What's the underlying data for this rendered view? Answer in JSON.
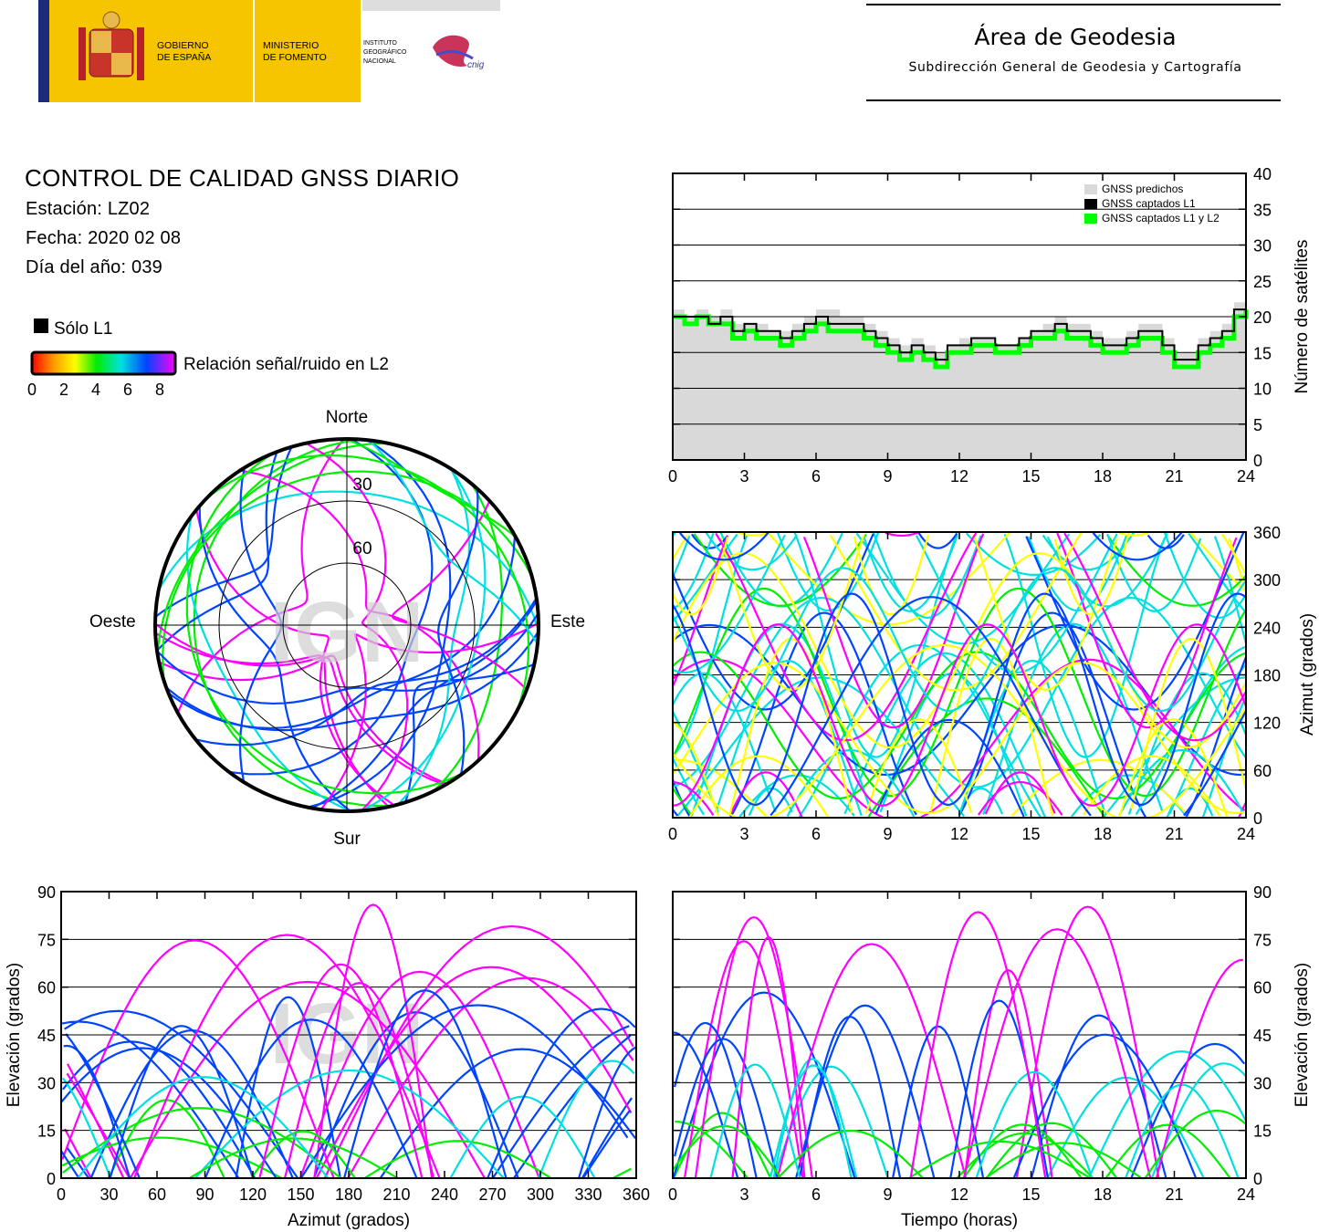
{
  "header": {
    "gov_line1": "GOBIERNO",
    "gov_line2": "DE ESPAÑA",
    "min_line1": "MINISTERIO",
    "min_line2": "DE FOMENTO",
    "inst_line1": "INSTITUTO",
    "inst_line2": "GEOGRÁFICO",
    "inst_line3": "NACIONAL",
    "cnig": "cnig",
    "area_title": "Área de Geodesia",
    "area_subtitle": "Subdirección General de Geodesia y Cartografía"
  },
  "report": {
    "title": "CONTROL DE CALIDAD GNSS DIARIO",
    "station": "Estación: LZ02",
    "date": "Fecha: 2020 02 08",
    "doy": "Día del año: 039"
  },
  "legend": {
    "solo_l1": "Sólo L1",
    "snr_label": "Relación señal/ruido en L2",
    "snr_ticks": [
      "0",
      "2",
      "4",
      "6",
      "8"
    ]
  },
  "colors": {
    "predicted": "#d9d9d9",
    "l1": "#000000",
    "l1l2": "#00ff00",
    "snr_scale": [
      "#ff0000",
      "#ff9900",
      "#ffff00",
      "#00ee00",
      "#00e0e0",
      "#0044ff",
      "#ff00ff"
    ]
  },
  "watermark": "IGN",
  "chart_data": [
    {
      "id": "skyplot",
      "type": "scatter",
      "projection": "polar",
      "labels": {
        "north": "Norte",
        "south": "Sur",
        "east": "Este",
        "west": "Oeste"
      },
      "ring_labels": [
        "30",
        "60"
      ],
      "rings_elevation": [
        30,
        60
      ]
    },
    {
      "id": "satellites",
      "type": "area",
      "ylabel": "Número de satélites",
      "xlim": [
        0,
        24
      ],
      "ylim": [
        0,
        40
      ],
      "xticks": [
        "0",
        "3",
        "6",
        "9",
        "12",
        "15",
        "18",
        "21",
        "24"
      ],
      "yticks": [
        "0",
        "5",
        "10",
        "15",
        "20",
        "25",
        "30",
        "35",
        "40"
      ],
      "legend": [
        "GNSS predichos",
        "GNSS captados L1",
        "GNSS captados L1 y L2"
      ],
      "x": [
        0,
        0.5,
        1,
        1.5,
        2,
        2.5,
        3,
        3.5,
        4,
        4.5,
        5,
        5.5,
        6,
        6.5,
        7,
        7.5,
        8,
        8.5,
        9,
        9.5,
        10,
        10.5,
        11,
        11.5,
        12,
        12.5,
        13,
        13.5,
        14,
        14.5,
        15,
        15.5,
        16,
        16.5,
        17,
        17.5,
        18,
        18.5,
        19,
        19.5,
        20,
        20.5,
        21,
        21.5,
        22,
        22.5,
        23,
        23.5,
        24
      ],
      "series": [
        {
          "name": "GNSS predichos",
          "values": [
            21,
            20,
            21,
            20,
            21,
            19,
            19,
            19,
            18,
            18,
            19,
            20,
            21,
            21,
            20,
            20,
            19,
            18,
            17,
            16,
            17,
            16,
            15,
            16,
            17,
            17,
            17,
            16,
            16,
            17,
            18,
            19,
            20,
            19,
            19,
            18,
            17,
            17,
            18,
            19,
            19,
            17,
            15,
            15,
            17,
            18,
            19,
            22,
            23
          ]
        },
        {
          "name": "GNSS captados L1",
          "values": [
            20,
            20,
            20,
            19,
            20,
            18,
            19,
            18,
            18,
            17,
            18,
            19,
            20,
            19,
            19,
            19,
            18,
            17,
            16,
            15,
            16,
            15,
            14,
            16,
            16,
            17,
            17,
            16,
            16,
            17,
            18,
            18,
            19,
            18,
            18,
            17,
            16,
            16,
            17,
            18,
            18,
            16,
            14,
            14,
            16,
            17,
            18,
            21,
            22
          ]
        },
        {
          "name": "GNSS captados L1 y L2",
          "values": [
            20,
            19,
            20,
            19,
            19,
            17,
            18,
            17,
            17,
            16,
            17,
            18,
            19,
            18,
            18,
            18,
            17,
            16,
            15,
            14,
            15,
            14,
            13,
            15,
            15,
            16,
            16,
            15,
            15,
            16,
            17,
            17,
            18,
            17,
            17,
            16,
            15,
            15,
            16,
            17,
            17,
            15,
            13,
            13,
            15,
            16,
            17,
            20,
            21
          ]
        }
      ]
    },
    {
      "id": "azimuth-time",
      "type": "scatter",
      "ylabel": "Azimut (grados)",
      "xlim": [
        0,
        24
      ],
      "ylim": [
        0,
        360
      ],
      "xticks": [
        "0",
        "3",
        "6",
        "9",
        "12",
        "15",
        "18",
        "21",
        "24"
      ],
      "yticks": [
        "0",
        "60",
        "120",
        "180",
        "240",
        "300",
        "360"
      ]
    },
    {
      "id": "elevation-azimuth",
      "type": "scatter",
      "xlabel": "Azimut (grados)",
      "ylabel": "Elevación (grados)",
      "xlim": [
        0,
        360
      ],
      "ylim": [
        0,
        90
      ],
      "xticks": [
        "0",
        "30",
        "60",
        "90",
        "120",
        "150",
        "180",
        "210",
        "240",
        "270",
        "300",
        "330",
        "360"
      ],
      "yticks": [
        "0",
        "15",
        "30",
        "45",
        "60",
        "75",
        "90"
      ]
    },
    {
      "id": "elevation-time",
      "type": "scatter",
      "xlabel": "Tiempo (horas)",
      "ylabel": "Elevación (grados)",
      "xlim": [
        0,
        24
      ],
      "ylim": [
        0,
        90
      ],
      "xticks": [
        "0",
        "3",
        "6",
        "9",
        "12",
        "15",
        "18",
        "21",
        "24"
      ],
      "yticks": [
        "0",
        "15",
        "30",
        "45",
        "60",
        "75",
        "90"
      ]
    }
  ]
}
